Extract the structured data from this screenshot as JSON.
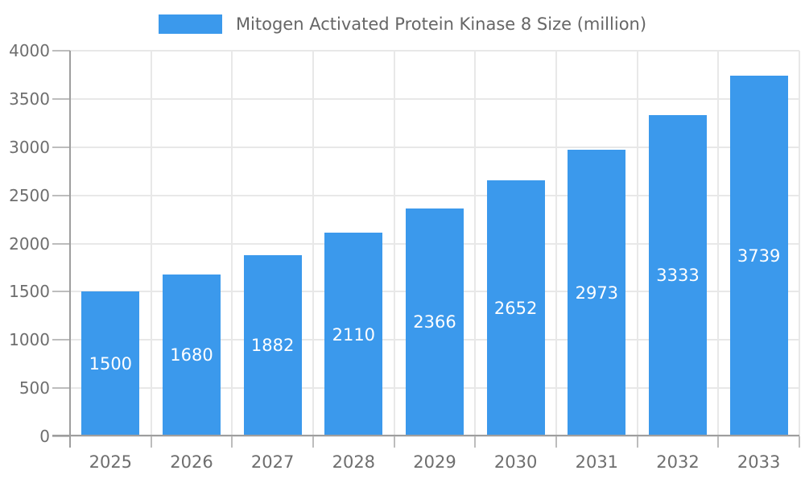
{
  "chart_data": {
    "type": "bar",
    "title": "Mitogen Activated Protein Kinase 8 Size (million)",
    "categories": [
      "2025",
      "2026",
      "2027",
      "2028",
      "2029",
      "2030",
      "2031",
      "2032",
      "2033"
    ],
    "series": [
      {
        "name": "Mitogen Activated Protein Kinase 8 Size (million)",
        "values": [
          1500,
          1680,
          1882,
          2110,
          2366,
          2652,
          2973,
          3333,
          3739
        ]
      }
    ],
    "value_labels": [
      1500,
      1680,
      1882,
      2110,
      2366,
      2652,
      2973,
      3333,
      3739
    ],
    "xlabel": "",
    "ylabel": "",
    "ylim": [
      0,
      4000
    ],
    "y_ticks": [
      0,
      500,
      1000,
      1500,
      2000,
      2500,
      3000,
      3500,
      4000
    ],
    "grid": "both",
    "legend_position": "top-center",
    "value_label_style": "inside-center-white",
    "colors": {
      "bar": "#3B99EC",
      "grid_line": "#E8E8E8",
      "axis_line": "#9E9E9E",
      "tick_mark": "#BDBDBD",
      "axis_text": "#6E6E6E",
      "legend_text": "#666666",
      "value_text": "#FFFFFF",
      "background": "#FFFFFF"
    }
  }
}
